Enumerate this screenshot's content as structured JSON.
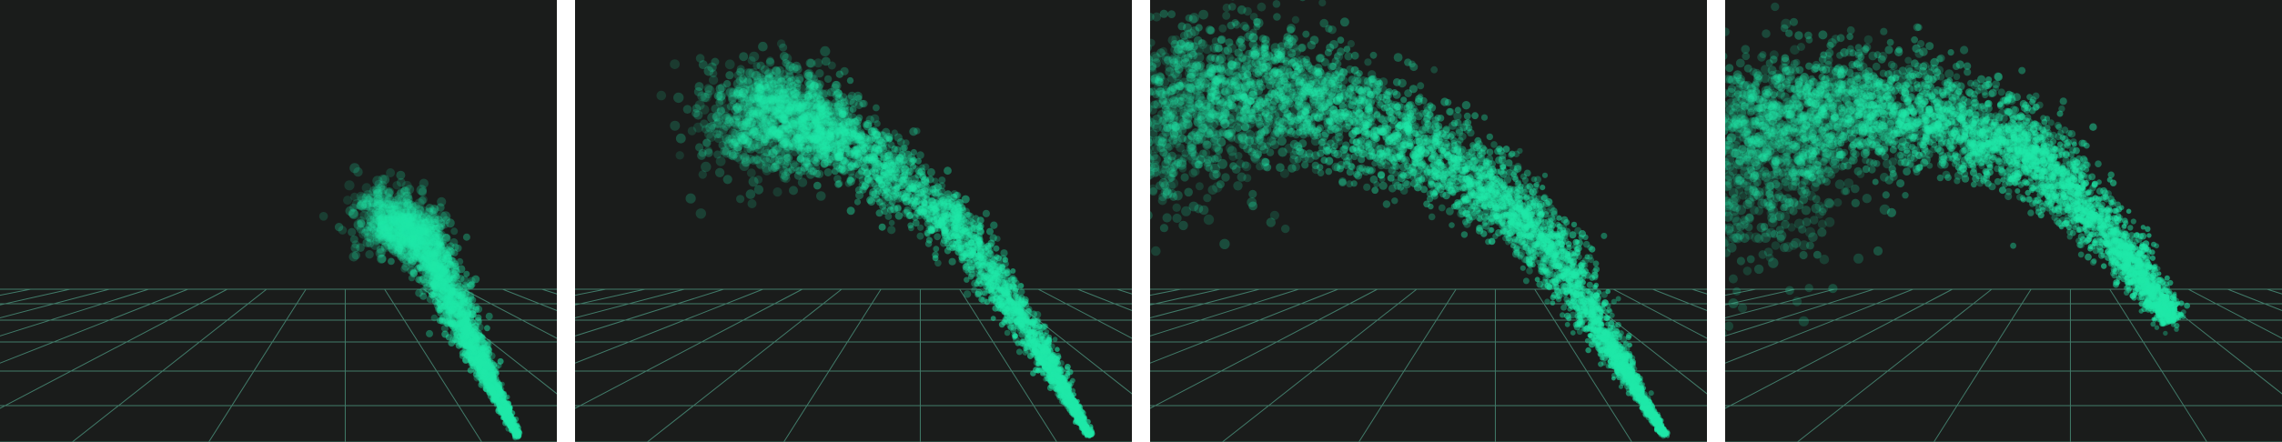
{
  "scene": {
    "background_color": "#1a1c1b",
    "grid_color": "#4f9b84",
    "particle_color": "#1fe8a8",
    "separator_color": "#ffffff"
  },
  "frames": [
    {
      "name": "frame-1",
      "description_level": 1
    },
    {
      "name": "frame-2",
      "description_level": 2
    },
    {
      "name": "frame-3",
      "description_level": 3
    },
    {
      "name": "frame-4",
      "description_level": 4
    }
  ]
}
